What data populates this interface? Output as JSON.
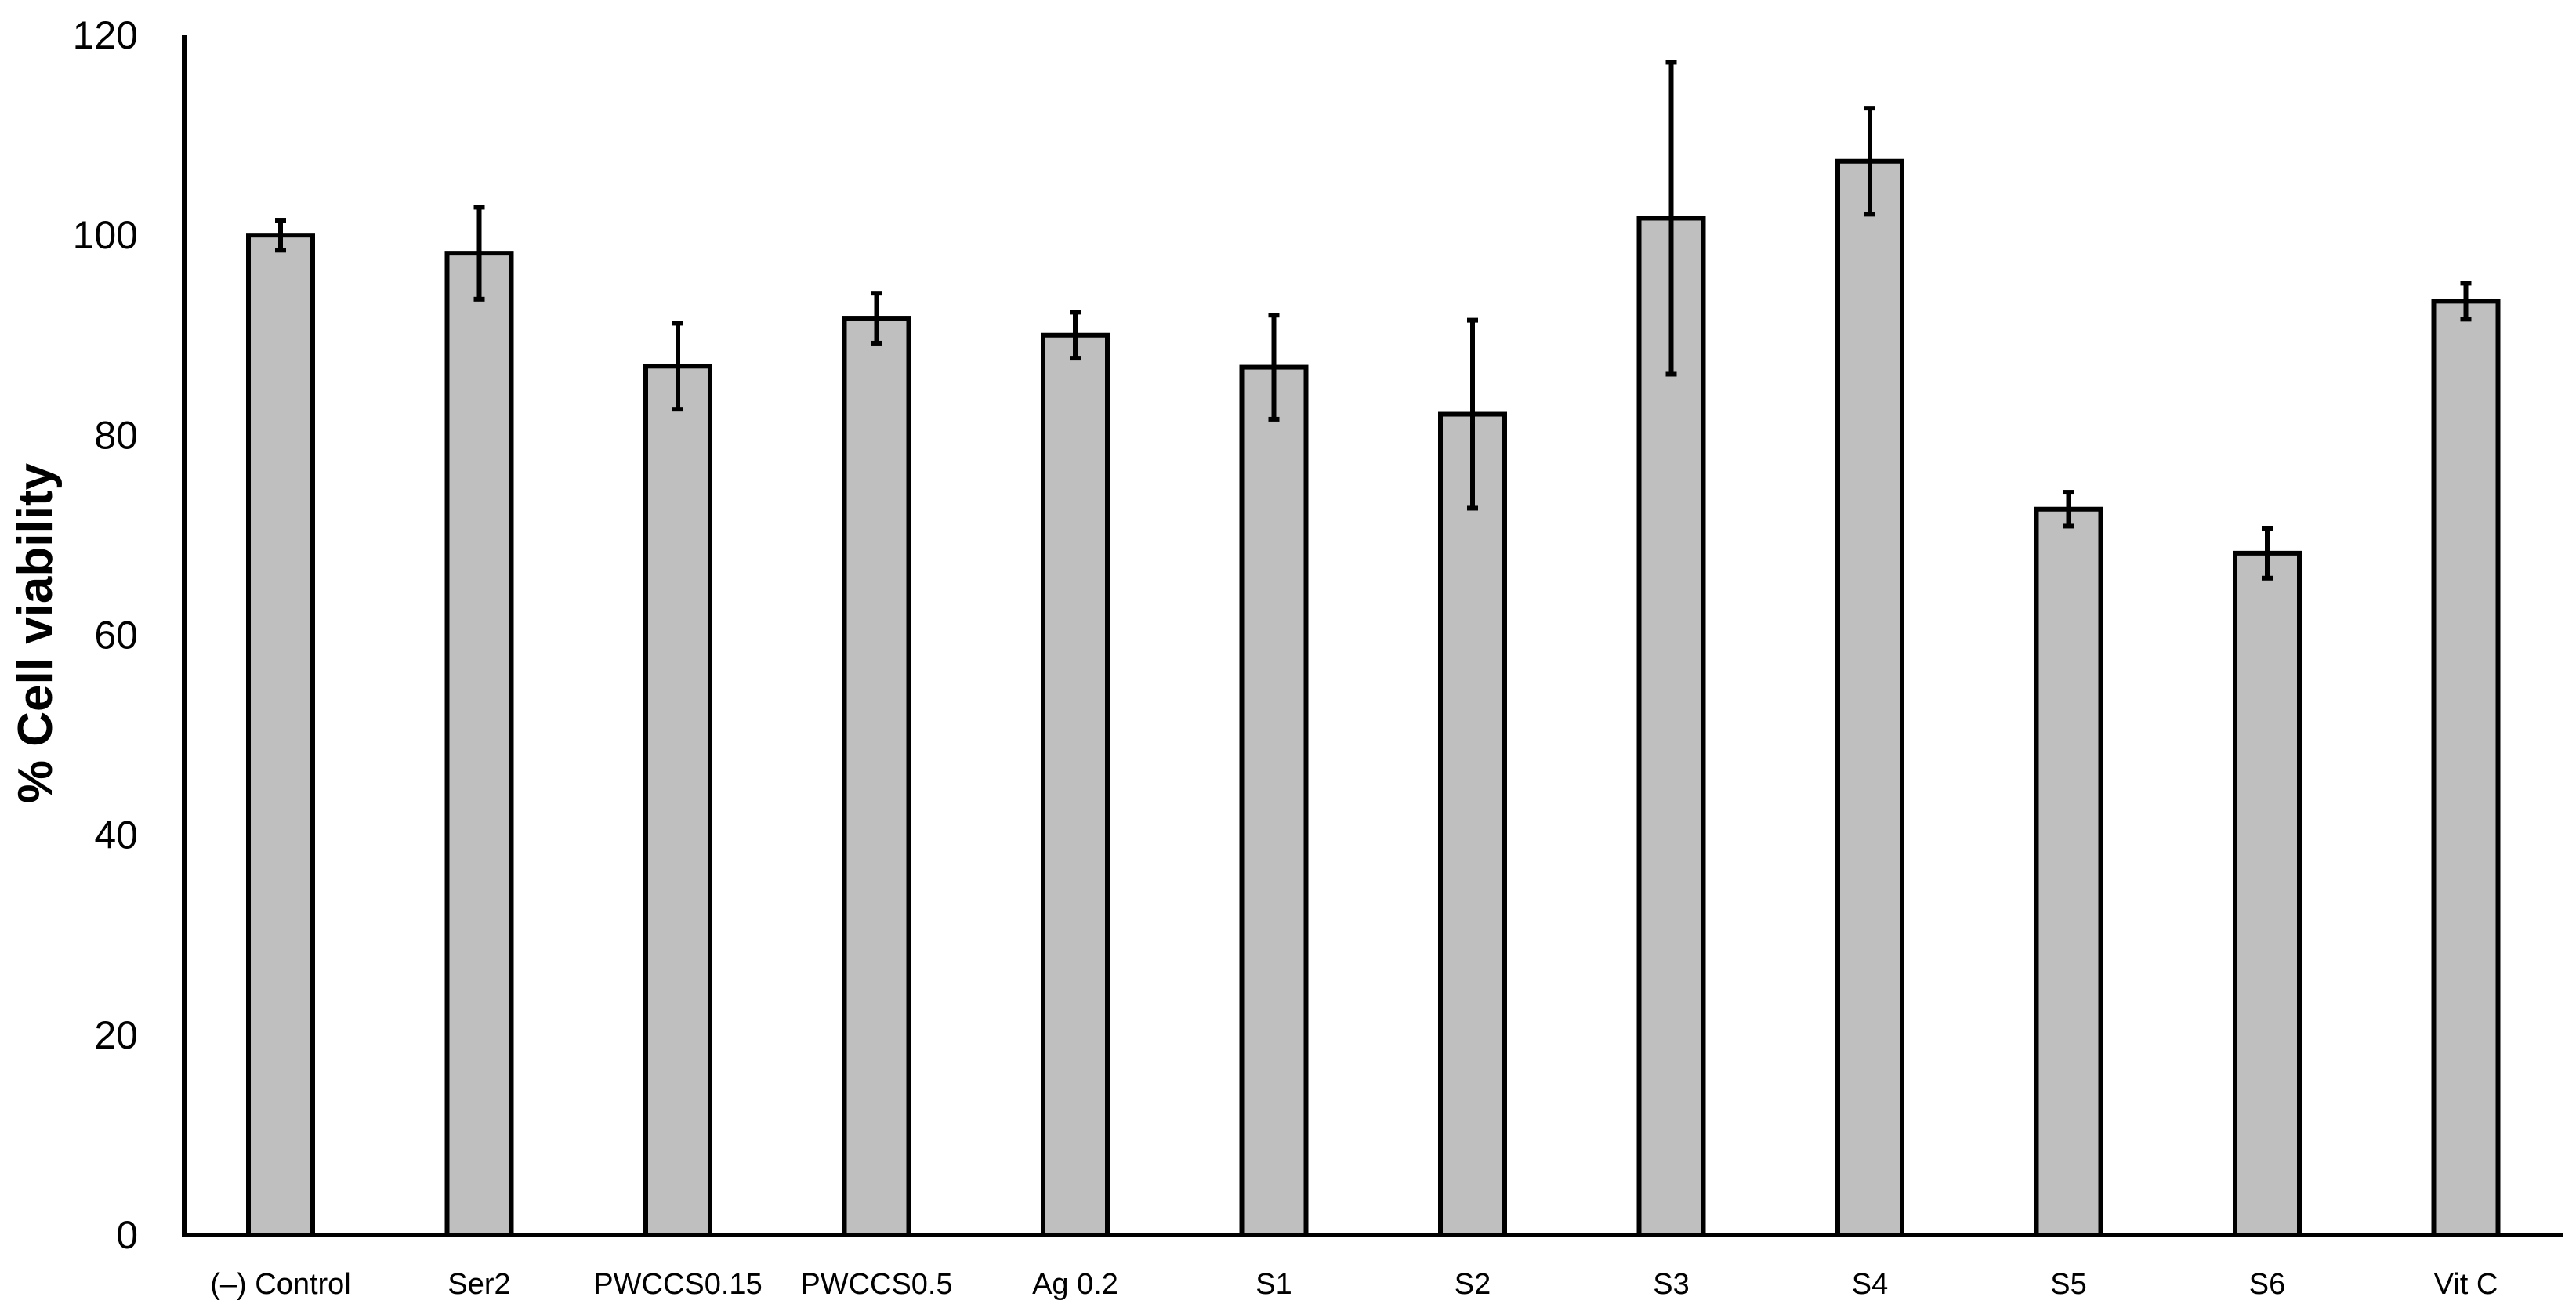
{
  "chart_data": {
    "type": "bar",
    "title": "",
    "xlabel": "",
    "ylabel": "% Cell viability",
    "ylim": [
      0,
      120
    ],
    "yticks": [
      0,
      20,
      40,
      60,
      80,
      100,
      120
    ],
    "grid": false,
    "legend": "none",
    "categories": [
      "(–) Control",
      "Ser2",
      "PWCCS0.15",
      "PWCCS0.5",
      "Ag 0.2",
      "S1",
      "S2",
      "S3",
      "S4",
      "S5",
      "S6",
      "Vit C"
    ],
    "series": [
      {
        "values": [
          100,
          98.2,
          86.9,
          91.7,
          90.0,
          86.8,
          82.1,
          101.7,
          107.4,
          72.6,
          68.2,
          93.4
        ],
        "error": [
          1.5,
          4.6,
          4.3,
          2.5,
          2.3,
          5.2,
          9.4,
          15.6,
          5.3,
          1.7,
          2.5,
          1.8
        ]
      }
    ],
    "colors": {
      "bar_fill": "#bfbfbf",
      "bar_stroke": "#000000",
      "axis": "#000000",
      "error_bar": "#000000"
    }
  }
}
